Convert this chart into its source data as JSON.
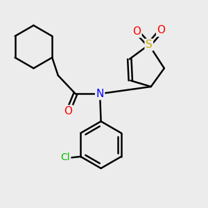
{
  "background_color": "#ECECEC",
  "bond_color": "#000000",
  "bond_width": 1.8,
  "atom_colors": {
    "O": "#FF0000",
    "N": "#0000FF",
    "S": "#CCAA00",
    "Cl": "#00BB00",
    "C": "#000000"
  },
  "font_size_atom": 10,
  "dbl_sep": 0.09
}
